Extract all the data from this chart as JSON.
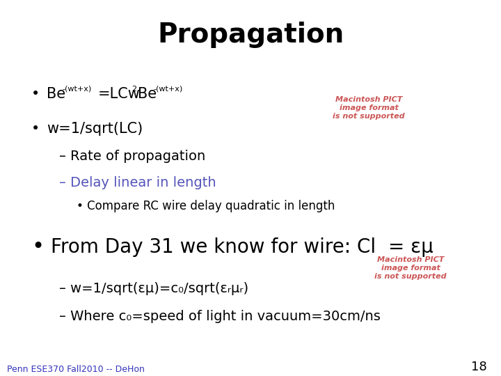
{
  "title": "Propagation",
  "title_fontsize": 28,
  "title_fontweight": "bold",
  "title_color": "#000000",
  "bg_color": "#ffffff",
  "bullet2": "w=1/sqrt(LC)",
  "sub1": "– Rate of propagation",
  "sub2": "– Delay linear in length",
  "sub2_color": "#5555bb",
  "subsub1": "• Compare RC wire delay quadratic in length",
  "bullet3_text": "From Day 31 we know for wire: Cl  = εμ",
  "sub3": "– w=1/sqrt(εμ)=c₀/sqrt(εᵣμᵣ)",
  "sub4": "– Where c₀=speed of light in vacuum=30cm/ns",
  "pict_text": "Macintosh PICT\nimage format\nis not supported",
  "pict_color": "#cc5555",
  "footer": "Penn ESE370 Fall2010 -- DeHon",
  "footer_color": "#3333bb",
  "page_num": "18",
  "black": "#000000"
}
